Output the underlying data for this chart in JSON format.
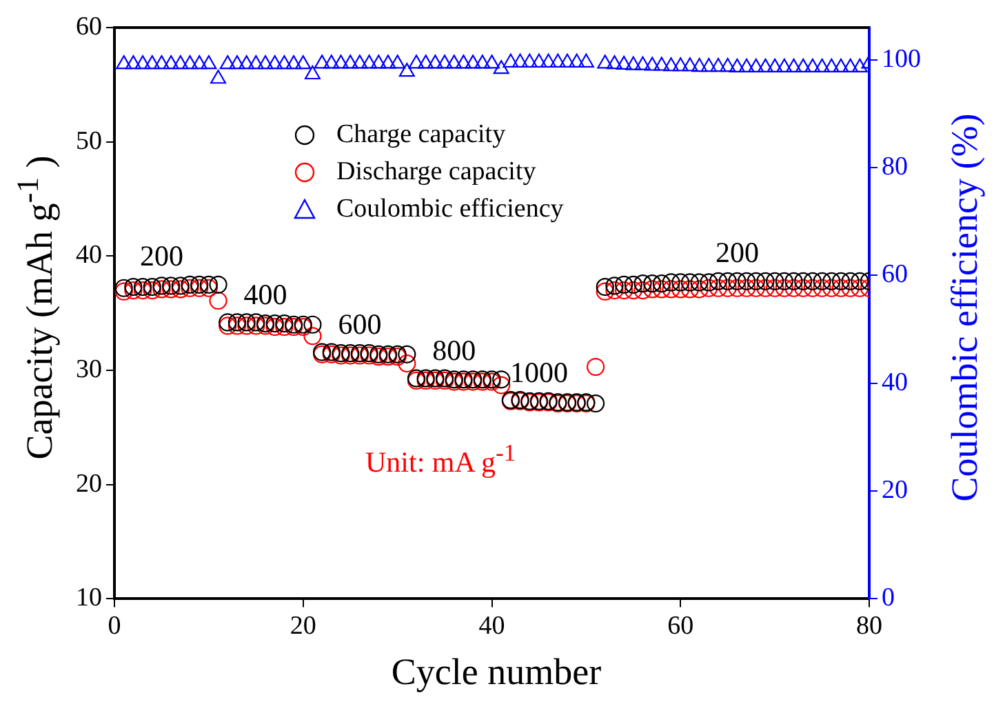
{
  "chart_data": {
    "type": "scatter",
    "xlabel": "Cycle number",
    "ylabel": "Capacity (mAh g$^{-1}$ )",
    "y2label": "Coulombic efficiency (%)",
    "x": [
      1,
      2,
      3,
      4,
      5,
      6,
      7,
      8,
      9,
      10,
      11,
      12,
      13,
      14,
      15,
      16,
      17,
      18,
      19,
      20,
      21,
      22,
      23,
      24,
      25,
      26,
      27,
      28,
      29,
      30,
      31,
      32,
      33,
      34,
      35,
      36,
      37,
      38,
      39,
      40,
      41,
      42,
      43,
      44,
      45,
      46,
      47,
      48,
      49,
      50,
      51,
      52,
      53,
      54,
      55,
      56,
      57,
      58,
      59,
      60,
      61,
      62,
      63,
      64,
      65,
      66,
      67,
      68,
      69,
      70,
      71,
      72,
      73,
      74,
      75,
      76,
      77,
      78,
      79,
      80
    ],
    "series": [
      {
        "name": "Charge capacity",
        "color": "#000000",
        "marker": "circle",
        "values": [
          37.2,
          37.3,
          37.3,
          37.3,
          37.4,
          37.4,
          37.4,
          37.5,
          37.5,
          37.5,
          37.5,
          34.2,
          34.2,
          34.2,
          34.2,
          34.1,
          34.1,
          34.1,
          34.0,
          34.0,
          34.0,
          31.6,
          31.6,
          31.5,
          31.5,
          31.5,
          31.5,
          31.4,
          31.4,
          31.4,
          31.4,
          29.3,
          29.3,
          29.3,
          29.3,
          29.2,
          29.2,
          29.2,
          29.2,
          29.2,
          29.2,
          27.4,
          27.4,
          27.3,
          27.3,
          27.3,
          27.2,
          27.2,
          27.2,
          27.2,
          27.1,
          37.3,
          37.4,
          37.5,
          37.5,
          37.6,
          37.6,
          37.6,
          37.7,
          37.7,
          37.7,
          37.7,
          37.7,
          37.8,
          37.8,
          37.8,
          37.8,
          37.8,
          37.8,
          37.8,
          37.8,
          37.8,
          37.8,
          37.8,
          37.8,
          37.8,
          37.8,
          37.8,
          37.8,
          37.8
        ]
      },
      {
        "name": "Discharge capacity",
        "color": "#ff0000",
        "marker": "circle",
        "values": [
          36.9,
          37.0,
          37.0,
          37.0,
          37.1,
          37.1,
          37.1,
          37.2,
          37.2,
          37.2,
          36.1,
          33.9,
          33.9,
          33.9,
          33.9,
          33.9,
          33.8,
          33.8,
          33.8,
          33.8,
          33.0,
          31.4,
          31.4,
          31.3,
          31.3,
          31.3,
          31.3,
          31.2,
          31.2,
          31.2,
          30.6,
          29.1,
          29.1,
          29.1,
          29.1,
          29.0,
          29.0,
          29.0,
          29.0,
          29.0,
          28.7,
          27.3,
          27.3,
          27.2,
          27.2,
          27.2,
          27.1,
          27.1,
          27.1,
          27.1,
          30.3,
          36.9,
          37.0,
          37.0,
          37.0,
          37.0,
          37.1,
          37.1,
          37.1,
          37.1,
          37.1,
          37.1,
          37.2,
          37.2,
          37.2,
          37.2,
          37.2,
          37.2,
          37.2,
          37.2,
          37.2,
          37.2,
          37.2,
          37.2,
          37.2,
          37.2,
          37.2,
          37.2,
          37.2,
          37.2
        ]
      },
      {
        "name": "Coulombic efficiency",
        "color": "#0000ff",
        "marker": "triangle",
        "axis": "y2",
        "values": [
          99.2,
          99.2,
          99.2,
          99.2,
          99.2,
          99.2,
          99.2,
          99.2,
          99.2,
          99.2,
          96.5,
          99.2,
          99.2,
          99.2,
          99.2,
          99.2,
          99.2,
          99.2,
          99.2,
          99.2,
          97.3,
          99.3,
          99.3,
          99.3,
          99.3,
          99.3,
          99.3,
          99.3,
          99.3,
          99.3,
          97.8,
          99.3,
          99.3,
          99.3,
          99.3,
          99.3,
          99.3,
          99.3,
          99.3,
          99.3,
          98.3,
          99.5,
          99.5,
          99.5,
          99.5,
          99.5,
          99.5,
          99.5,
          99.5,
          99.5,
          null,
          99.3,
          99.2,
          99.1,
          99.0,
          99.0,
          98.9,
          98.9,
          98.8,
          98.8,
          98.8,
          98.7,
          98.7,
          98.7,
          98.7,
          98.6,
          98.6,
          98.6,
          98.6,
          98.6,
          98.6,
          98.6,
          98.6,
          98.6,
          98.6,
          98.6,
          98.6,
          98.6,
          98.6,
          99.3
        ]
      }
    ],
    "xlim": [
      0,
      80
    ],
    "xticks": [
      0,
      20,
      40,
      60,
      80
    ],
    "ylim": [
      10,
      60
    ],
    "yticks": [
      10,
      20,
      30,
      40,
      50,
      60
    ],
    "y2lim": [
      0,
      106
    ],
    "y2ticks": [
      0,
      20,
      40,
      60,
      80,
      100
    ],
    "grid": false,
    "legend": "top",
    "annotations": [
      {
        "text": "200",
        "x": 5,
        "y": 38.6
      },
      {
        "text": "400",
        "x": 16,
        "y": 35.2
      },
      {
        "text": "600",
        "x": 26,
        "y": 32.6
      },
      {
        "text": "800",
        "x": 36,
        "y": 30.3
      },
      {
        "text": "1000",
        "x": 45,
        "y": 28.4
      },
      {
        "text": "200",
        "x": 66,
        "y": 38.9
      },
      "Unit: mA g$^{-1}$"
    ]
  }
}
